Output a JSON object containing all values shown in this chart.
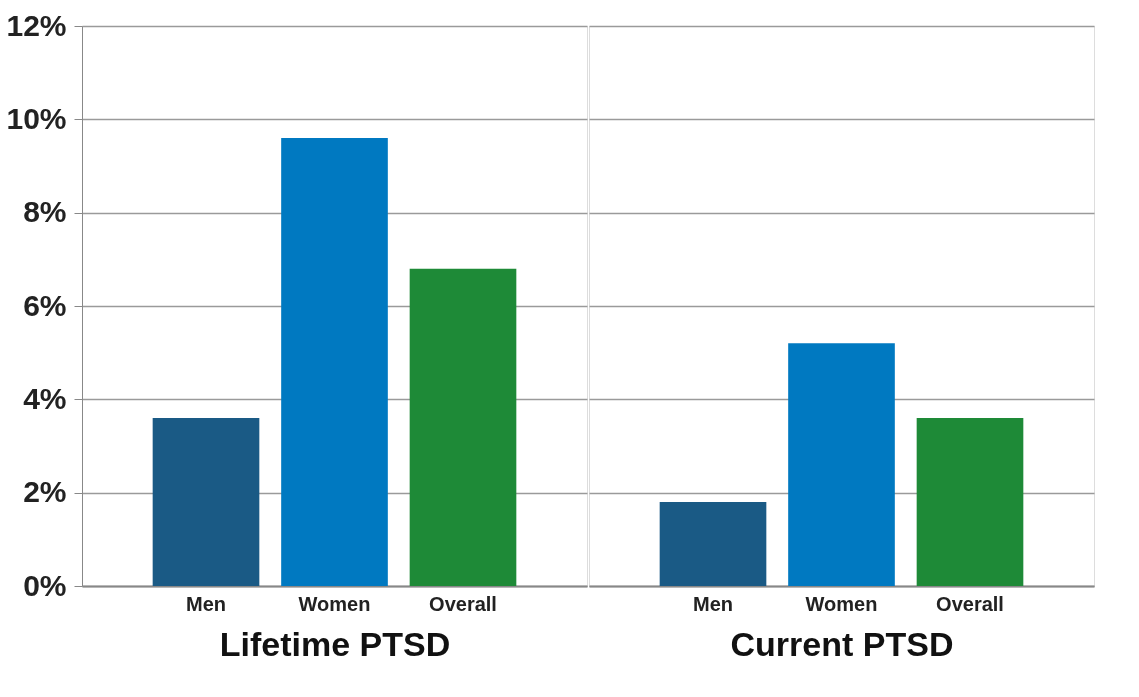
{
  "chart_data": [
    {
      "type": "bar",
      "xlabel": "Lifetime PTSD",
      "categories": [
        "Men",
        "Women",
        "Overall"
      ],
      "values": [
        3.6,
        9.6,
        6.8
      ],
      "colors": [
        "#1a5a85",
        "#0079c1",
        "#1e8a37"
      ],
      "ylim": [
        0,
        12
      ],
      "yticks": [
        {
          "value": 0,
          "label": "0%"
        },
        {
          "value": 2,
          "label": "2%"
        },
        {
          "value": 4,
          "label": "4%"
        },
        {
          "value": 6,
          "label": "6%"
        },
        {
          "value": 8,
          "label": "8%"
        },
        {
          "value": 10,
          "label": "10%"
        },
        {
          "value": 12,
          "label": "12%"
        }
      ],
      "grid": "y"
    },
    {
      "type": "bar",
      "xlabel": "Current PTSD",
      "categories": [
        "Men",
        "Women",
        "Overall"
      ],
      "values": [
        1.8,
        5.2,
        3.6
      ],
      "colors": [
        "#1a5a85",
        "#0079c1",
        "#1e8a37"
      ],
      "ylim": [
        0,
        12
      ],
      "yticks": [
        0,
        2,
        4,
        6,
        8,
        10,
        12
      ],
      "grid": "y",
      "tick_labels": "x"
    }
  ]
}
